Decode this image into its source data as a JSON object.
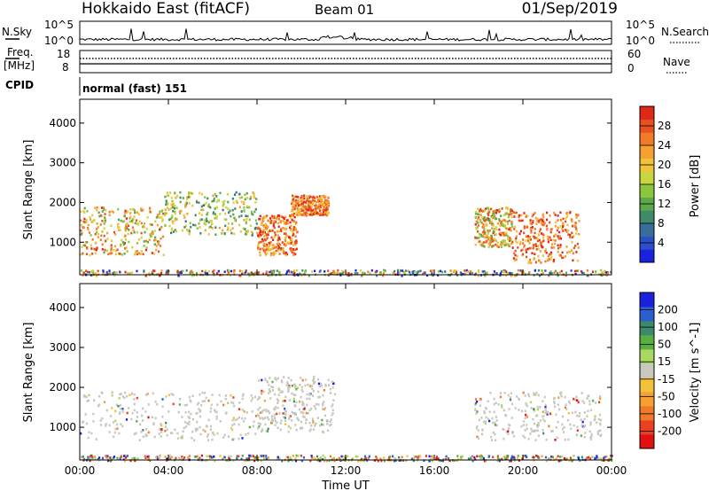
{
  "header": {
    "title": "Hokkaido East (fitACF)",
    "beam": "Beam 01",
    "date": "01/Sep/2019"
  },
  "params": {
    "nsky_label": "N.Sky",
    "nsky_ticks": [
      "10^5",
      "10^0"
    ],
    "nsearch_label": "N.Search",
    "freq_label": "Freq.",
    "freq_unit": "[MHz]",
    "freq_ticks": [
      "18",
      "8"
    ],
    "nave_label": "Nave",
    "nave_ticks": [
      "60",
      "0"
    ],
    "cpid_label": "CPID",
    "cpid_value": "normal (fast) 151"
  },
  "chart_data": [
    {
      "type": "heatmap",
      "title": "",
      "xlabel": "",
      "ylabel": "Slant Range [km]",
      "xlim": [
        0,
        24
      ],
      "ylim": [
        180,
        4600
      ],
      "x_ticks": [
        "00:00",
        "04:00",
        "08:00",
        "12:00",
        "16:00",
        "20:00",
        "00:00"
      ],
      "y_ticks": [
        1000,
        2000,
        3000,
        4000
      ],
      "colorbar": {
        "label": "Power [dB]",
        "ticks": [
          4,
          8,
          12,
          16,
          20,
          24,
          28
        ],
        "range": [
          0,
          30
        ],
        "colors": [
          "#1a22e0",
          "#2a4fc8",
          "#3a6e9a",
          "#3f8a6a",
          "#5aa84a",
          "#8cc63c",
          "#c8d640",
          "#f2c23a",
          "#f5a030",
          "#f07a28",
          "#e85020",
          "#e02818"
        ]
      },
      "regions": [
        {
          "t0": 0.0,
          "t1": 3.8,
          "r0": 700,
          "r1": 1900,
          "level": "mid-high"
        },
        {
          "t0": 3.8,
          "t1": 8.0,
          "r0": 1200,
          "r1": 2300,
          "level": "mid"
        },
        {
          "t0": 8.0,
          "t1": 9.8,
          "r0": 700,
          "r1": 1700,
          "level": "high"
        },
        {
          "t0": 9.5,
          "t1": 11.2,
          "r0": 1700,
          "r1": 2200,
          "level": "high"
        },
        {
          "t0": 17.8,
          "t1": 19.5,
          "r0": 900,
          "r1": 1900,
          "level": "mid-high"
        },
        {
          "t0": 19.5,
          "t1": 22.5,
          "r0": 500,
          "r1": 1800,
          "level": "high"
        },
        {
          "t0": 0.0,
          "t1": 24.0,
          "r0": 180,
          "r1": 320,
          "level": "ground"
        }
      ]
    },
    {
      "type": "heatmap",
      "title": "",
      "xlabel": "Time UT",
      "ylabel": "Slant Range [km]",
      "xlim": [
        0,
        24
      ],
      "ylim": [
        180,
        4600
      ],
      "x_ticks": [
        "00:00",
        "04:00",
        "08:00",
        "12:00",
        "16:00",
        "20:00",
        "00:00"
      ],
      "y_ticks": [
        1000,
        2000,
        3000,
        4000
      ],
      "colorbar": {
        "label": "Velocity [m s^-1]",
        "ticks": [
          200,
          100,
          50,
          15,
          -15,
          -50,
          -100,
          -200
        ],
        "colors": [
          "#1a22e0",
          "#2a5fd0",
          "#3c8a6a",
          "#58b040",
          "#a8d860",
          "#c8c8c0",
          "#f2c23a",
          "#f5a030",
          "#f07a28",
          "#e84020",
          "#e01010"
        ]
      },
      "regions": [
        {
          "t0": 0.0,
          "t1": 8.0,
          "r0": 700,
          "r1": 1900,
          "level": "near-zero"
        },
        {
          "t0": 8.0,
          "t1": 11.5,
          "r0": 900,
          "r1": 2300,
          "level": "near-zero"
        },
        {
          "t0": 17.8,
          "t1": 23.5,
          "r0": 700,
          "r1": 1900,
          "level": "near-zero"
        },
        {
          "t0": 0.0,
          "t1": 24.0,
          "r0": 180,
          "r1": 320,
          "level": "ground"
        }
      ]
    }
  ]
}
